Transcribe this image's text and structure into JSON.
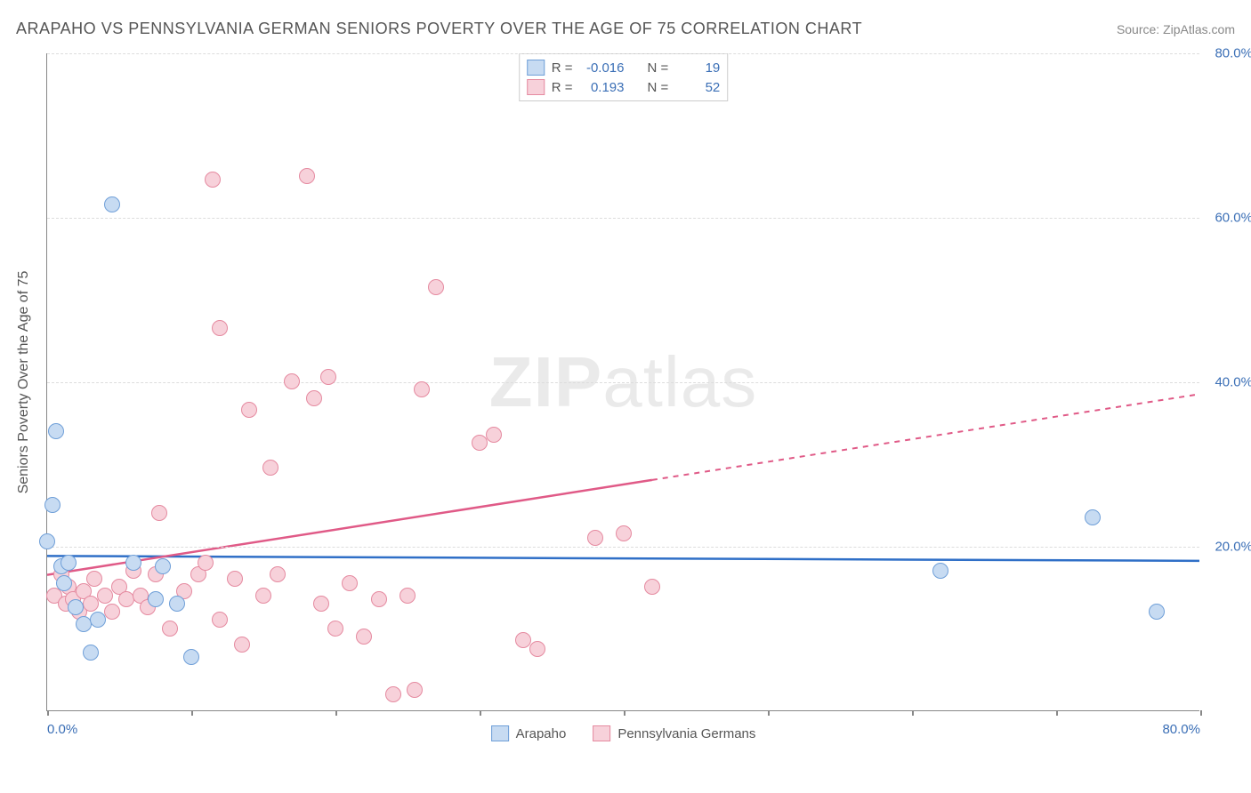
{
  "header": {
    "title": "ARAPAHO VS PENNSYLVANIA GERMAN SENIORS POVERTY OVER THE AGE OF 75 CORRELATION CHART",
    "source": "Source: ZipAtlas.com"
  },
  "watermark": {
    "zip": "ZIP",
    "atlas": "atlas"
  },
  "axes": {
    "y_label": "Seniors Poverty Over the Age of 75",
    "x_min": 0.0,
    "x_max": 80.0,
    "y_min": 0.0,
    "y_max": 80.0,
    "y_ticks": [
      80.0,
      60.0,
      40.0,
      20.0
    ],
    "y_tick_labels": [
      "80.0%",
      "60.0%",
      "40.0%",
      "20.0%"
    ],
    "x_ticks": [
      0.0,
      80.0
    ],
    "x_tick_labels": [
      "0.0%",
      "80.0%"
    ],
    "x_tick_marks": [
      0.0,
      10.0,
      20.0,
      30.0,
      40.0,
      50.0,
      60.0,
      70.0,
      80.0
    ],
    "grid_color": "#dddddd",
    "axis_color": "#888888",
    "tick_label_color": "#3b6fb6"
  },
  "series": {
    "arapaho": {
      "label": "Arapaho",
      "fill": "#c7dbf2",
      "stroke": "#6f9fd8",
      "line_color": "#2f6fc7",
      "marker_radius": 9,
      "R": "-0.016",
      "N": "19",
      "trend": {
        "x1": 0.0,
        "y1": 18.8,
        "x2": 80.0,
        "y2": 18.2,
        "solid_until": 80.0
      },
      "points": [
        [
          0.0,
          20.5
        ],
        [
          0.4,
          25.0
        ],
        [
          0.6,
          34.0
        ],
        [
          1.0,
          17.5
        ],
        [
          1.2,
          15.5
        ],
        [
          1.5,
          18.0
        ],
        [
          2.0,
          12.5
        ],
        [
          2.5,
          10.5
        ],
        [
          3.0,
          7.0
        ],
        [
          3.5,
          11.0
        ],
        [
          4.5,
          61.5
        ],
        [
          6.0,
          18.0
        ],
        [
          7.5,
          13.5
        ],
        [
          8.0,
          17.5
        ],
        [
          9.0,
          13.0
        ],
        [
          10.0,
          6.5
        ],
        [
          62.0,
          17.0
        ],
        [
          72.5,
          23.5
        ],
        [
          77.0,
          12.0
        ]
      ]
    },
    "penn": {
      "label": "Pennsylvania Germans",
      "fill": "#f7d1da",
      "stroke": "#e58aa0",
      "line_color": "#e05a87",
      "marker_radius": 9,
      "R": "0.193",
      "N": "52",
      "trend": {
        "x1": 0.0,
        "y1": 16.5,
        "x2": 80.0,
        "y2": 38.5,
        "solid_until": 42.0
      },
      "points": [
        [
          0.5,
          14.0
        ],
        [
          1.0,
          16.5
        ],
        [
          1.3,
          13.0
        ],
        [
          1.5,
          15.0
        ],
        [
          1.8,
          13.5
        ],
        [
          2.2,
          12.0
        ],
        [
          2.5,
          14.5
        ],
        [
          3.0,
          13.0
        ],
        [
          3.3,
          16.0
        ],
        [
          4.0,
          14.0
        ],
        [
          4.5,
          12.0
        ],
        [
          5.0,
          15.0
        ],
        [
          5.5,
          13.5
        ],
        [
          6.0,
          17.0
        ],
        [
          6.5,
          14.0
        ],
        [
          7.0,
          12.5
        ],
        [
          7.5,
          16.5
        ],
        [
          7.8,
          24.0
        ],
        [
          8.5,
          10.0
        ],
        [
          9.5,
          14.5
        ],
        [
          10.5,
          16.5
        ],
        [
          11.0,
          18.0
        ],
        [
          11.5,
          64.5
        ],
        [
          12.0,
          46.5
        ],
        [
          12.0,
          11.0
        ],
        [
          13.0,
          16.0
        ],
        [
          13.5,
          8.0
        ],
        [
          14.0,
          36.5
        ],
        [
          15.0,
          14.0
        ],
        [
          15.5,
          29.5
        ],
        [
          16.0,
          16.5
        ],
        [
          17.0,
          40.0
        ],
        [
          18.0,
          65.0
        ],
        [
          18.5,
          38.0
        ],
        [
          19.0,
          13.0
        ],
        [
          19.5,
          40.5
        ],
        [
          20.0,
          10.0
        ],
        [
          21.0,
          15.5
        ],
        [
          22.0,
          9.0
        ],
        [
          23.0,
          13.5
        ],
        [
          24.0,
          2.0
        ],
        [
          25.0,
          14.0
        ],
        [
          25.5,
          2.5
        ],
        [
          26.0,
          39.0
        ],
        [
          27.0,
          51.5
        ],
        [
          30.0,
          32.5
        ],
        [
          31.0,
          33.5
        ],
        [
          33.0,
          8.5
        ],
        [
          34.0,
          7.5
        ],
        [
          38.0,
          21.0
        ],
        [
          40.0,
          21.5
        ],
        [
          42.0,
          15.0
        ]
      ]
    }
  },
  "legend_stats": {
    "R_label": "R =",
    "N_label": "N ="
  }
}
